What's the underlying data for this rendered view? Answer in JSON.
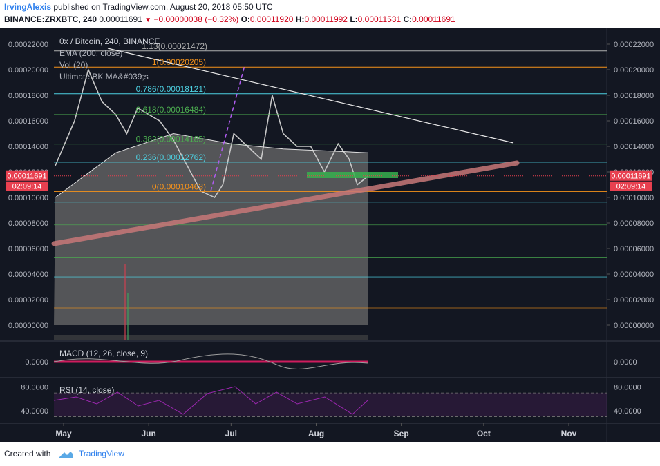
{
  "header": {
    "author": "IrvingAlexis",
    "published_text": "published on TradingView.com, August 20, 2018 05:50 UTC",
    "symbol": "BINANCE:ZRXBTC, 240",
    "last": "0.00011691",
    "change": "−0.00000038 (−0.32%)",
    "o_label": "O:",
    "o_value": "0.00011920",
    "h_label": "H:",
    "h_value": "0.00011992",
    "l_label": "L:",
    "l_value": "0.00011531",
    "c_label": "C:",
    "c_value": "0.00011691"
  },
  "legend": {
    "title": "0x / Bitcoin, 240, BINANCE",
    "ema": "EMA (200, close)",
    "vol": "Vol (20)",
    "ultimate": "Ultimate BK MA&#039;s"
  },
  "panes": {
    "macd_label": "MACD (12, 26, close, 9)",
    "rsi_label": "RSI (14, close)"
  },
  "price_tag": "0.00011691",
  "countdown": "02:09:14",
  "footer": {
    "created_with": "Created with",
    "brand": "TradingView"
  },
  "colors": {
    "background": "#131722",
    "candles": "#c8c8c8",
    "fib_white": "#b0b0b0",
    "fib_orange": "#f7931a",
    "fib_cyan": "#4dd0e1",
    "fib_green": "#4caf50",
    "trendline": "#e8e8e8",
    "support_channel": "#c87878",
    "zone": "#37b24d",
    "dashed_projection": "#b05cf0",
    "macd_hist": "#ff1e6e",
    "rsi": "#9c27b0",
    "price_tag": "#e84050"
  },
  "chart_data": [
    {
      "type": "line",
      "title": "0x / Bitcoin, 240, BINANCE",
      "x_ticks": [
        "May",
        "Jun",
        "Jul",
        "Aug",
        "Sep",
        "Oct",
        "Nov"
      ],
      "y_ticks": [
        "0.00022000",
        "0.00020000",
        "0.00018000",
        "0.00016000",
        "0.00014000",
        "0.00012000",
        "0.00010000",
        "0.00008000",
        "0.00006000",
        "0.00004000",
        "0.00002000",
        "0.00000000"
      ],
      "ylim": [
        0,
        0.00022
      ],
      "grid": false,
      "series": [
        {
          "name": "",
          "x": [
            "2018-04-28",
            "2018-05-05",
            "2018-05-10",
            "2018-05-15",
            "2018-05-20",
            "2018-05-24",
            "2018-05-28",
            "2018-06-01",
            "2018-06-05",
            "2018-06-10",
            "2018-06-15",
            "2018-06-20",
            "2018-06-25",
            "2018-06-28",
            "2018-07-02",
            "2018-07-07",
            "2018-07-12",
            "2018-07-16",
            "2018-07-20",
            "2018-07-25",
            "2018-07-30",
            "2018-08-04",
            "2018-08-09",
            "2018-08-13",
            "2018-08-16",
            "2018-08-20"
          ],
          "values": [
            0.000125,
            0.00016,
            0.0002,
            0.000175,
            0.000165,
            0.00015,
            0.00017,
            0.000165,
            0.00016,
            0.000145,
            0.000125,
            0.000105,
            0.0001,
            0.00011,
            0.00015,
            0.00014,
            0.00013,
            0.00018,
            0.00015,
            0.00014,
            0.00014,
            0.00012,
            0.000142,
            0.00013,
            0.00011,
            0.00011691
          ]
        },
        {
          "name": "EMA (200, close)",
          "x": [
            "2018-04-28",
            "2018-05-20",
            "2018-06-10",
            "2018-07-01",
            "2018-07-20",
            "2018-08-10",
            "2018-08-20"
          ],
          "values": [
            0.0001,
            0.000135,
            0.00015,
            0.000142,
            0.000138,
            0.000136,
            0.000135
          ]
        }
      ],
      "fibonacci": [
        {
          "level": "1.13",
          "price": "0.00021472"
        },
        {
          "level": "1",
          "price": "0.00020205"
        },
        {
          "level": "0.786",
          "price": "0.00018121"
        },
        {
          "level": "0.618",
          "price": "0.00016484"
        },
        {
          "level": "0.382",
          "price": "0.00014185"
        },
        {
          "level": "0.236",
          "price": "0.00012762"
        },
        {
          "level": "0",
          "price": "0.00010463"
        }
      ],
      "extra_levels": [
        9.63e-05,
        7.85e-05,
        5.32e-05,
        3.78e-05,
        1.35e-05
      ]
    },
    {
      "type": "line",
      "title": "MACD (12, 26, close, 9)",
      "y_ticks": [
        "0.0000"
      ],
      "ylim": [
        -1,
        1
      ]
    },
    {
      "type": "line",
      "title": "RSI (14, close)",
      "y_ticks": [
        "80.0000",
        "40.0000"
      ],
      "ylim": [
        20,
        90
      ],
      "bands": [
        70,
        30
      ]
    }
  ]
}
